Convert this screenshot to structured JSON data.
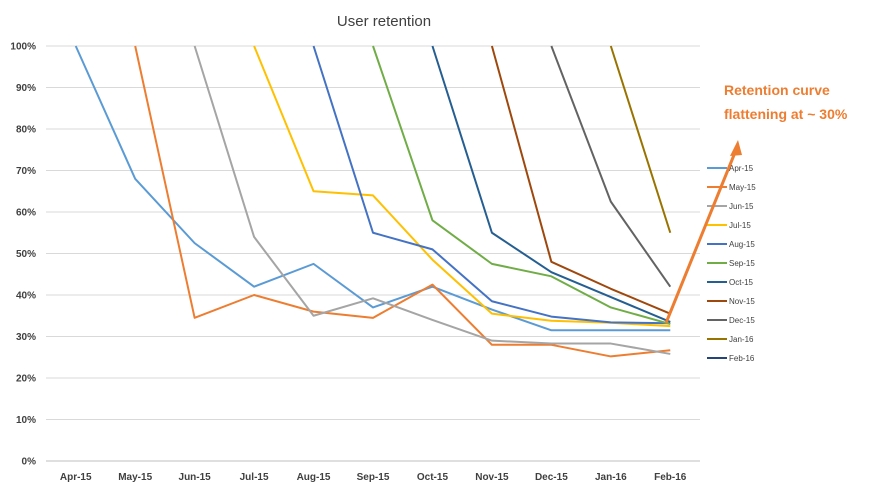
{
  "chart_data": {
    "type": "line",
    "title": "User retention",
    "xlabel": "",
    "ylabel": "",
    "categories": [
      "Apr-15",
      "May-15",
      "Jun-15",
      "Jul-15",
      "Aug-15",
      "Sep-15",
      "Oct-15",
      "Nov-15",
      "Dec-15",
      "Jan-16",
      "Feb-16"
    ],
    "y_tick_labels": [
      "0%",
      "10%",
      "20%",
      "30%",
      "40%",
      "50%",
      "60%",
      "70%",
      "80%",
      "90%",
      "100%"
    ],
    "ylim": [
      0,
      100
    ],
    "grid": true,
    "legend_position": "right",
    "series": [
      {
        "name": "Apr-15",
        "color": "#5B9BD5",
        "values": [
          100,
          68,
          52.5,
          42,
          47.5,
          37,
          42,
          36.5,
          31.5,
          31.5,
          31.5
        ]
      },
      {
        "name": "May-15",
        "color": "#ED7D31",
        "values": [
          null,
          100,
          34.5,
          40,
          36,
          34.5,
          42.5,
          28,
          28,
          25.2,
          26.7
        ]
      },
      {
        "name": "Jun-15",
        "color": "#A5A5A5",
        "values": [
          null,
          null,
          100,
          54,
          35,
          39.2,
          34,
          29,
          28.3,
          28.3,
          25.8
        ]
      },
      {
        "name": "Jul-15",
        "color": "#FFC000",
        "values": [
          null,
          null,
          null,
          100,
          65,
          64,
          48.5,
          35.5,
          33.8,
          33.3,
          32.5
        ]
      },
      {
        "name": "Aug-15",
        "color": "#4472C4",
        "values": [
          null,
          null,
          null,
          null,
          100,
          55,
          51,
          38.5,
          34.8,
          33.4,
          33.2
        ]
      },
      {
        "name": "Sep-15",
        "color": "#70AD47",
        "values": [
          null,
          null,
          null,
          null,
          null,
          100,
          58,
          47.5,
          44.5,
          37,
          33
        ]
      },
      {
        "name": "Oct-15",
        "color": "#255E91",
        "values": [
          null,
          null,
          null,
          null,
          null,
          null,
          100,
          55,
          45.5,
          39.5,
          33.5
        ]
      },
      {
        "name": "Nov-15",
        "color": "#9E480E",
        "values": [
          null,
          null,
          null,
          null,
          null,
          null,
          null,
          100,
          48,
          41.5,
          35.5
        ]
      },
      {
        "name": "Dec-15",
        "color": "#636363",
        "values": [
          null,
          null,
          null,
          null,
          null,
          null,
          null,
          null,
          100,
          62.5,
          42
        ]
      },
      {
        "name": "Jan-16",
        "color": "#997300",
        "values": [
          null,
          null,
          null,
          null,
          null,
          null,
          null,
          null,
          null,
          100,
          55
        ]
      },
      {
        "name": "Feb-16",
        "color": "#264478",
        "values": [
          null,
          null,
          null,
          null,
          null,
          null,
          null,
          null,
          null,
          null,
          null
        ]
      }
    ],
    "annotation": {
      "line1": "Retention curve",
      "line2": "flattening at ~ 30%",
      "color": "#ED7D31"
    }
  }
}
